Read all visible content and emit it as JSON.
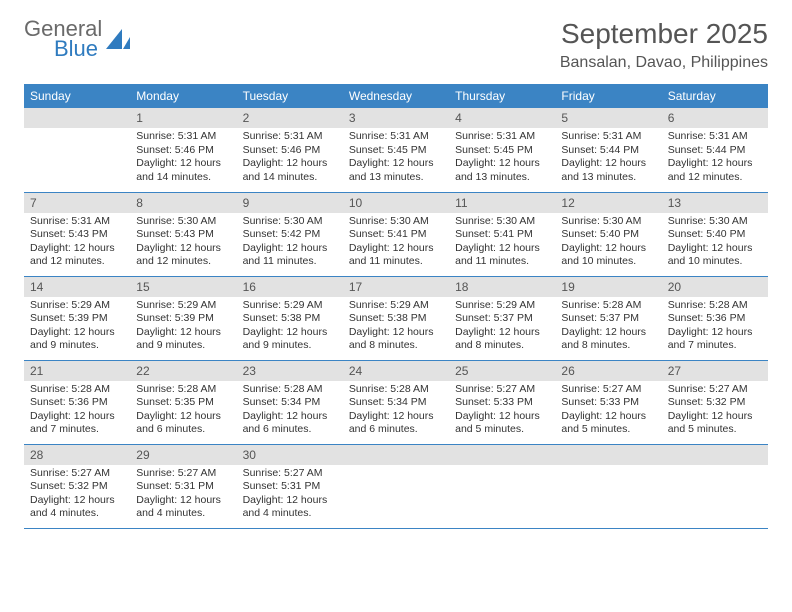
{
  "logo": {
    "general": "General",
    "blue": "Blue"
  },
  "title": "September 2025",
  "location": "Bansalan, Davao, Philippines",
  "colors": {
    "header_bg": "#3b84c4",
    "header_text": "#ffffff",
    "daynum_bg": "#e2e2e2",
    "border": "#3b84c4",
    "logo_gray": "#6a6a6a",
    "logo_blue": "#2f7bbf"
  },
  "weekdays": [
    "Sunday",
    "Monday",
    "Tuesday",
    "Wednesday",
    "Thursday",
    "Friday",
    "Saturday"
  ],
  "start_offset": 1,
  "days": [
    {
      "n": 1,
      "sr": "5:31 AM",
      "ss": "5:46 PM",
      "dl": "12 hours and 14 minutes."
    },
    {
      "n": 2,
      "sr": "5:31 AM",
      "ss": "5:46 PM",
      "dl": "12 hours and 14 minutes."
    },
    {
      "n": 3,
      "sr": "5:31 AM",
      "ss": "5:45 PM",
      "dl": "12 hours and 13 minutes."
    },
    {
      "n": 4,
      "sr": "5:31 AM",
      "ss": "5:45 PM",
      "dl": "12 hours and 13 minutes."
    },
    {
      "n": 5,
      "sr": "5:31 AM",
      "ss": "5:44 PM",
      "dl": "12 hours and 13 minutes."
    },
    {
      "n": 6,
      "sr": "5:31 AM",
      "ss": "5:44 PM",
      "dl": "12 hours and 12 minutes."
    },
    {
      "n": 7,
      "sr": "5:31 AM",
      "ss": "5:43 PM",
      "dl": "12 hours and 12 minutes."
    },
    {
      "n": 8,
      "sr": "5:30 AM",
      "ss": "5:43 PM",
      "dl": "12 hours and 12 minutes."
    },
    {
      "n": 9,
      "sr": "5:30 AM",
      "ss": "5:42 PM",
      "dl": "12 hours and 11 minutes."
    },
    {
      "n": 10,
      "sr": "5:30 AM",
      "ss": "5:41 PM",
      "dl": "12 hours and 11 minutes."
    },
    {
      "n": 11,
      "sr": "5:30 AM",
      "ss": "5:41 PM",
      "dl": "12 hours and 11 minutes."
    },
    {
      "n": 12,
      "sr": "5:30 AM",
      "ss": "5:40 PM",
      "dl": "12 hours and 10 minutes."
    },
    {
      "n": 13,
      "sr": "5:30 AM",
      "ss": "5:40 PM",
      "dl": "12 hours and 10 minutes."
    },
    {
      "n": 14,
      "sr": "5:29 AM",
      "ss": "5:39 PM",
      "dl": "12 hours and 9 minutes."
    },
    {
      "n": 15,
      "sr": "5:29 AM",
      "ss": "5:39 PM",
      "dl": "12 hours and 9 minutes."
    },
    {
      "n": 16,
      "sr": "5:29 AM",
      "ss": "5:38 PM",
      "dl": "12 hours and 9 minutes."
    },
    {
      "n": 17,
      "sr": "5:29 AM",
      "ss": "5:38 PM",
      "dl": "12 hours and 8 minutes."
    },
    {
      "n": 18,
      "sr": "5:29 AM",
      "ss": "5:37 PM",
      "dl": "12 hours and 8 minutes."
    },
    {
      "n": 19,
      "sr": "5:28 AM",
      "ss": "5:37 PM",
      "dl": "12 hours and 8 minutes."
    },
    {
      "n": 20,
      "sr": "5:28 AM",
      "ss": "5:36 PM",
      "dl": "12 hours and 7 minutes."
    },
    {
      "n": 21,
      "sr": "5:28 AM",
      "ss": "5:36 PM",
      "dl": "12 hours and 7 minutes."
    },
    {
      "n": 22,
      "sr": "5:28 AM",
      "ss": "5:35 PM",
      "dl": "12 hours and 6 minutes."
    },
    {
      "n": 23,
      "sr": "5:28 AM",
      "ss": "5:34 PM",
      "dl": "12 hours and 6 minutes."
    },
    {
      "n": 24,
      "sr": "5:28 AM",
      "ss": "5:34 PM",
      "dl": "12 hours and 6 minutes."
    },
    {
      "n": 25,
      "sr": "5:27 AM",
      "ss": "5:33 PM",
      "dl": "12 hours and 5 minutes."
    },
    {
      "n": 26,
      "sr": "5:27 AM",
      "ss": "5:33 PM",
      "dl": "12 hours and 5 minutes."
    },
    {
      "n": 27,
      "sr": "5:27 AM",
      "ss": "5:32 PM",
      "dl": "12 hours and 5 minutes."
    },
    {
      "n": 28,
      "sr": "5:27 AM",
      "ss": "5:32 PM",
      "dl": "12 hours and 4 minutes."
    },
    {
      "n": 29,
      "sr": "5:27 AM",
      "ss": "5:31 PM",
      "dl": "12 hours and 4 minutes."
    },
    {
      "n": 30,
      "sr": "5:27 AM",
      "ss": "5:31 PM",
      "dl": "12 hours and 4 minutes."
    }
  ],
  "labels": {
    "sunrise": "Sunrise:",
    "sunset": "Sunset:",
    "daylight": "Daylight:"
  }
}
